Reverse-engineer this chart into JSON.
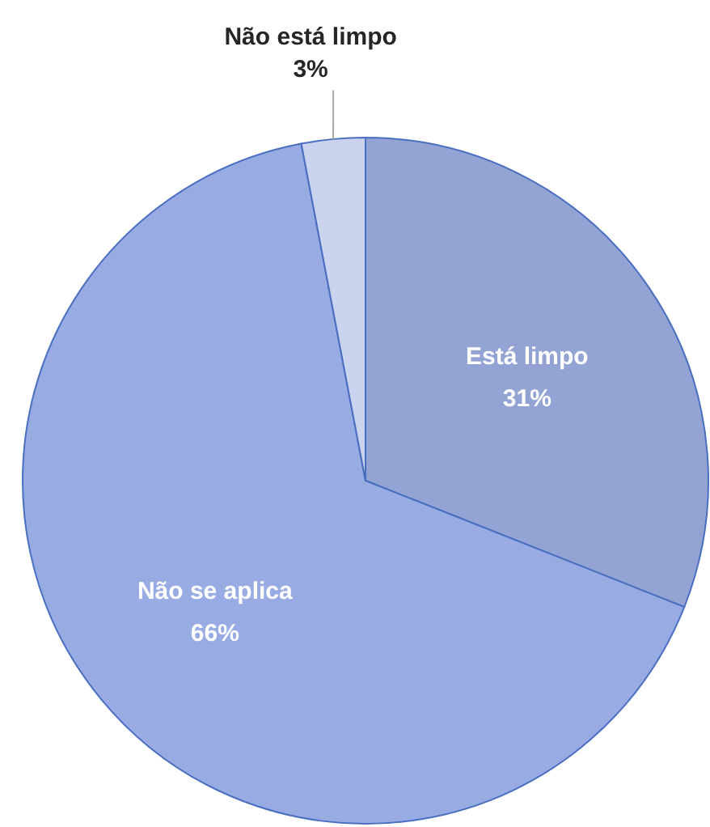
{
  "chart_data": {
    "type": "pie",
    "categories": [
      "Está limpo",
      "Não se aplica",
      "Não está limpo"
    ],
    "values": [
      31,
      66,
      3
    ],
    "value_labels": [
      "31%",
      "66%",
      "3%"
    ],
    "colors": [
      "#93a3d3",
      "#98ace3",
      "#cbd4ef"
    ]
  }
}
